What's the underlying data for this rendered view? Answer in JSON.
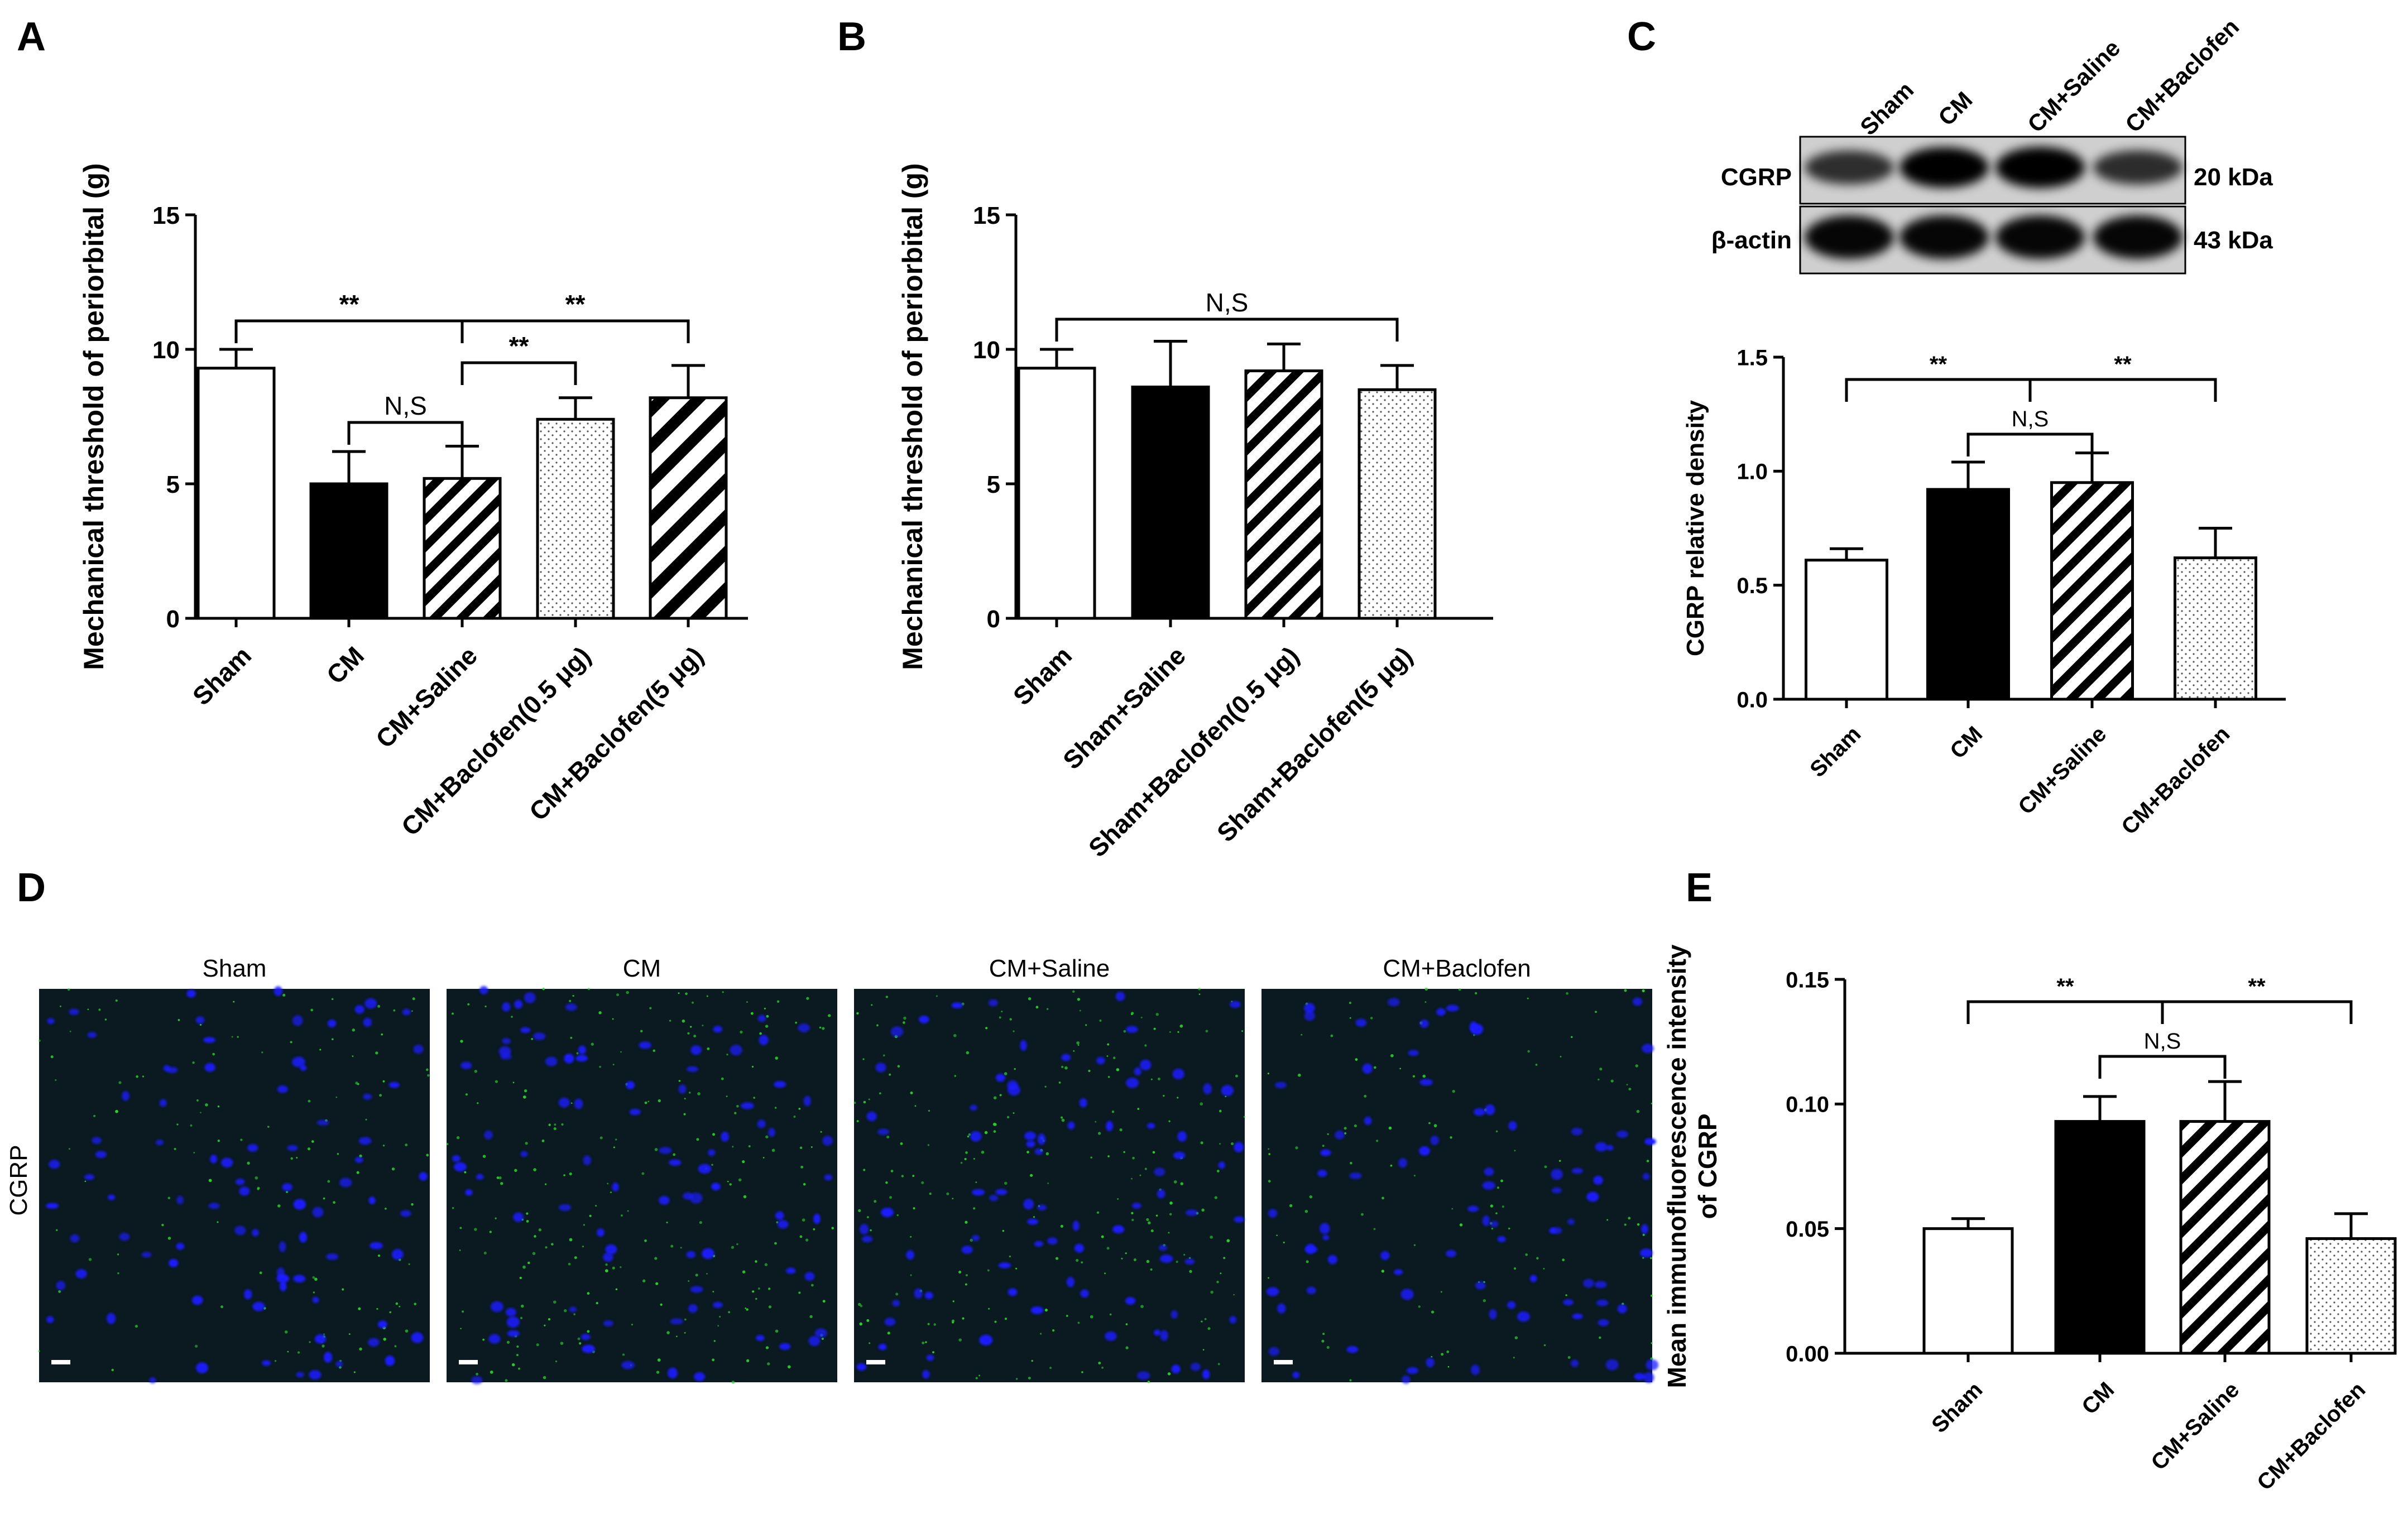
{
  "panels": {
    "A": {
      "letter": "A"
    },
    "B": {
      "letter": "B"
    },
    "C": {
      "letter": "C"
    },
    "D": {
      "letter": "D"
    },
    "E": {
      "letter": "E"
    }
  },
  "western_blot": {
    "lane_labels": [
      "Sham",
      "CM",
      "CM+Saline",
      "CM+Baclofen"
    ],
    "rows": [
      {
        "name": "CGRP",
        "kda": "20 kDa",
        "intensity": [
          0.62,
          0.92,
          0.95,
          0.63
        ]
      },
      {
        "name": "β-actin",
        "kda": "43 kDa",
        "intensity": [
          1.0,
          1.0,
          1.0,
          1.0
        ]
      }
    ]
  },
  "micrographs": {
    "row_label": "CGRP",
    "columns": [
      "Sham",
      "CM",
      "CM+Saline",
      "CM+Baclofen"
    ],
    "green_intensity": [
      0.05,
      0.093,
      0.093,
      0.046
    ]
  },
  "colors": {
    "bar_outline": "#000000",
    "bar_solid": "#000000",
    "bar_open": "#ffffff",
    "nuclei": "#1a1aff",
    "fiber": "#2bd92b"
  },
  "chart_data": [
    {
      "id": "A",
      "type": "bar",
      "categories": [
        "Sham",
        "CM",
        "CM+Saline",
        "CM+Baclofen(0.5 μg)",
        "CM+Baclofen(5 μg)"
      ],
      "values": [
        9.3,
        5.0,
        5.2,
        7.4,
        8.2
      ],
      "errors": [
        0.7,
        1.2,
        1.2,
        0.8,
        1.2
      ],
      "fills": [
        "open",
        "solid",
        "stripes",
        "dots",
        "stripes-wide"
      ],
      "ylabel": "Mechanical threshold of periorbital (g)",
      "ylim": [
        0,
        15
      ],
      "yticks": [
        "0",
        "5",
        "10",
        "15"
      ],
      "significance": [
        {
          "from": 0,
          "to": 2,
          "label": "**"
        },
        {
          "from": 2,
          "to": 4,
          "label": "**"
        },
        {
          "from": 2,
          "to": 3,
          "label": "**"
        },
        {
          "from": 1,
          "to": 2,
          "label": "N,S"
        }
      ]
    },
    {
      "id": "B",
      "type": "bar",
      "categories": [
        "Sham",
        "Sham+Saline",
        "Sham+Baclofen(0.5 μg)",
        "Sham+Baclofen(5 μg)"
      ],
      "values": [
        9.3,
        8.6,
        9.2,
        8.5
      ],
      "errors": [
        0.7,
        1.7,
        1.0,
        0.9
      ],
      "fills": [
        "open",
        "solid",
        "stripes",
        "dots"
      ],
      "ylabel": "Mechanical threshold of periorbital (g)",
      "ylim": [
        0,
        15
      ],
      "yticks": [
        "0",
        "5",
        "10",
        "15"
      ],
      "significance": [
        {
          "from": 0,
          "to": 3,
          "label": "N,S"
        }
      ]
    },
    {
      "id": "C",
      "type": "bar",
      "categories": [
        "Sham",
        "CM",
        "CM+Saline",
        "CM+Baclofen"
      ],
      "values": [
        0.61,
        0.92,
        0.95,
        0.62
      ],
      "errors": [
        0.05,
        0.12,
        0.13,
        0.13
      ],
      "fills": [
        "open",
        "solid",
        "stripes",
        "dots"
      ],
      "ylabel": "CGRP relative density",
      "ylim": [
        0,
        1.5
      ],
      "yticks": [
        "0.0",
        "0.5",
        "1.0",
        "1.5"
      ],
      "significance": [
        {
          "from": 0,
          "to": 1.5,
          "label": "**"
        },
        {
          "from": 1.5,
          "to": 3,
          "label": "**"
        },
        {
          "from": 1,
          "to": 2,
          "label": "N,S"
        }
      ]
    },
    {
      "id": "E",
      "type": "bar",
      "categories": [
        "Sham",
        "CM",
        "CM+Saline",
        "CM+Baclofen"
      ],
      "values": [
        0.05,
        0.093,
        0.093,
        0.046
      ],
      "errors": [
        0.004,
        0.01,
        0.016,
        0.01
      ],
      "fills": [
        "open",
        "solid",
        "stripes",
        "dots"
      ],
      "ylabel": "Mean immunofluorescence intensity of CGRP",
      "ylim": [
        0,
        0.15
      ],
      "yticks": [
        "0.00",
        "0.05",
        "0.10",
        "0.15"
      ],
      "significance": [
        {
          "from": 0,
          "to": 1.5,
          "label": "**"
        },
        {
          "from": 1.5,
          "to": 3,
          "label": "**"
        },
        {
          "from": 1,
          "to": 2,
          "label": "N,S"
        }
      ]
    }
  ]
}
